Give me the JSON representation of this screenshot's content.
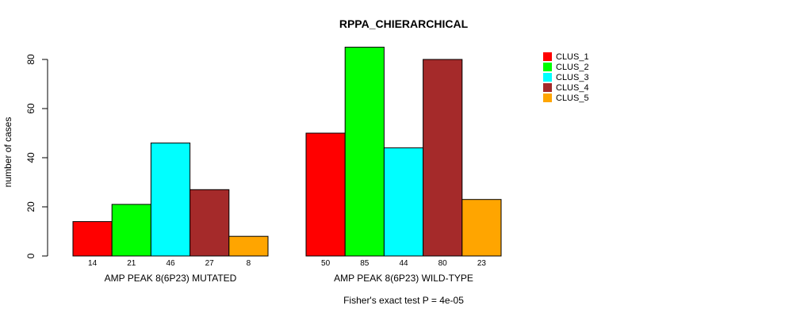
{
  "chart_data": {
    "type": "bar",
    "title": "RPPA_CHIERARCHICAL",
    "ylabel": "number of cases",
    "xlabel": "",
    "ylim": [
      0,
      80
    ],
    "yticks": [
      0,
      20,
      40,
      60,
      80
    ],
    "categories": [
      "AMP PEAK  8(6P23) MUTATED",
      "AMP PEAK  8(6P23) WILD-TYPE"
    ],
    "series": [
      {
        "name": "CLUS_1",
        "color": "#ff0000",
        "values": [
          14,
          50
        ]
      },
      {
        "name": "CLUS_2",
        "color": "#00ff00",
        "values": [
          21,
          85
        ]
      },
      {
        "name": "CLUS_3",
        "color": "#00ffff",
        "values": [
          46,
          44
        ]
      },
      {
        "name": "CLUS_4",
        "color": "#a52a2a",
        "values": [
          27,
          80
        ]
      },
      {
        "name": "CLUS_5",
        "color": "#ffa500",
        "values": [
          8,
          23
        ]
      }
    ],
    "footnote": "Fisher's exact test P = 4e-05",
    "legend_position": "top-right"
  }
}
